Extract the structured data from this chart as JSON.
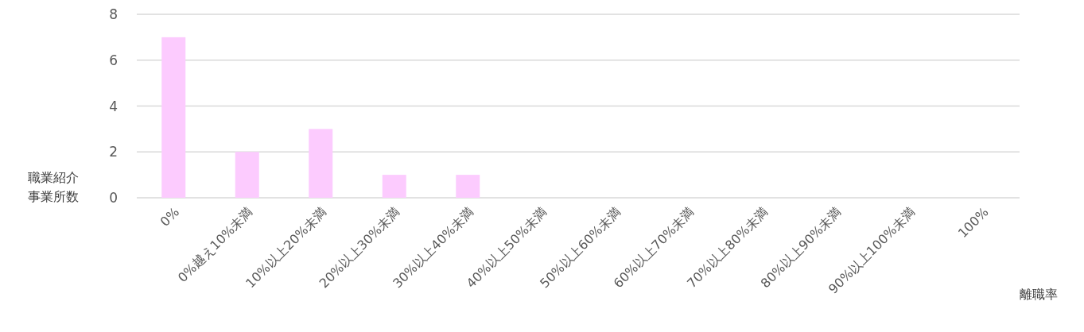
{
  "chart_data": {
    "type": "bar",
    "ylabel": "職業紹介事業所数",
    "xlabel": "離職率",
    "categories": [
      "0%",
      "0%越え10%未満",
      "10%以上20%未満",
      "20%以上30%未満",
      "30%以上40%未満",
      "40%以上50%未満",
      "50%以上60%未満",
      "60%以上70%未満",
      "70%以上80%未満",
      "80%以上90%未満",
      "90%以上100%未満",
      "100%"
    ],
    "values": [
      7,
      2,
      3,
      1,
      1,
      0,
      0,
      0,
      0,
      0,
      0,
      0
    ],
    "color": "#fccbfe",
    "ylim": [
      0,
      8
    ],
    "yticks": [
      0,
      2,
      4,
      6,
      8
    ],
    "grid": "y"
  }
}
